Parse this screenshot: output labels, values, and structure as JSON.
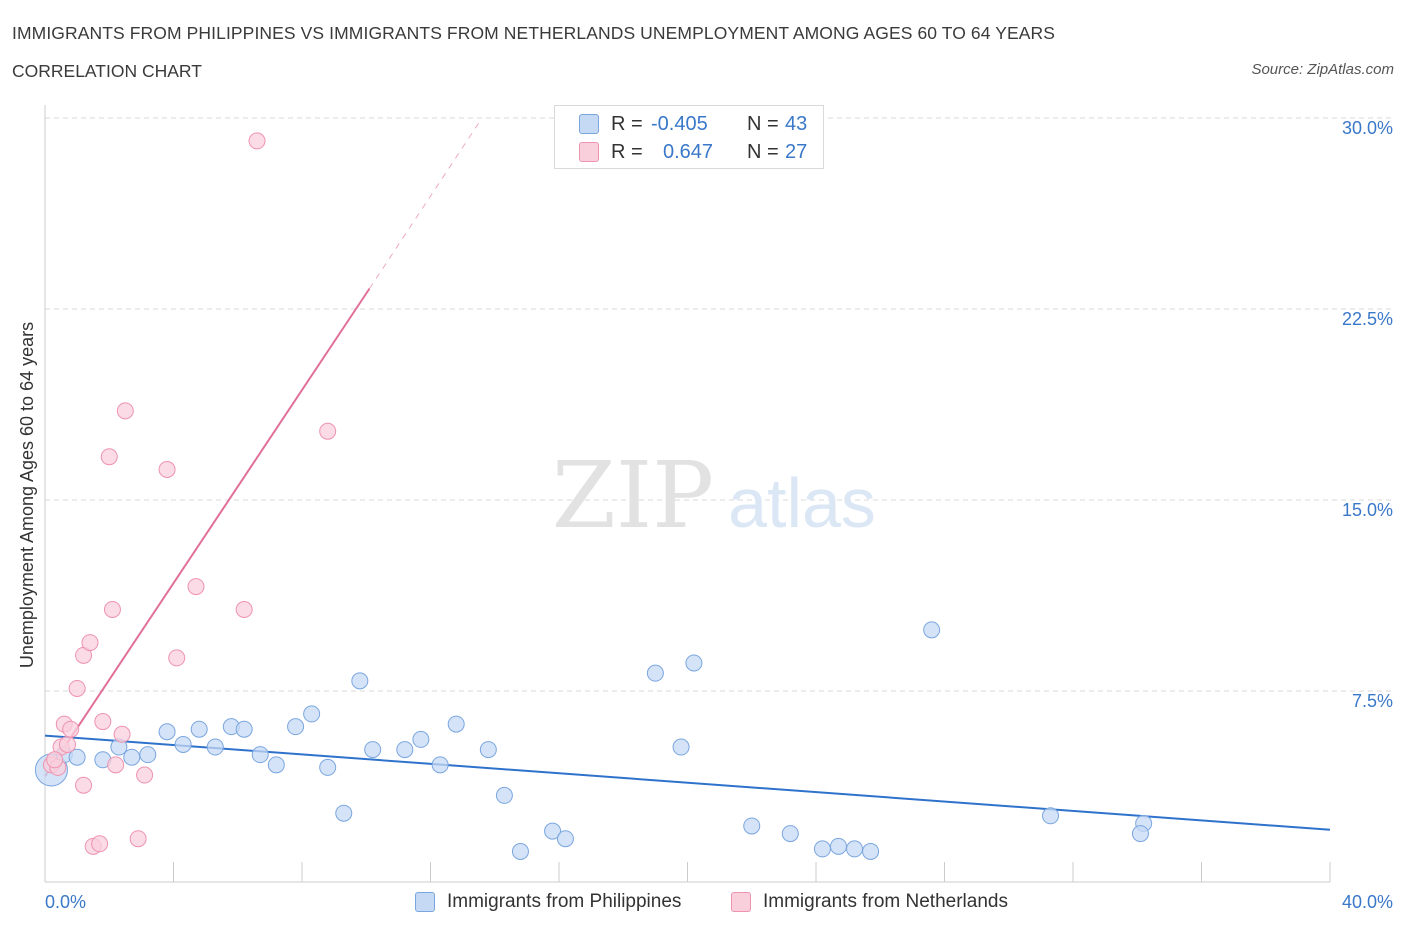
{
  "header": {
    "title": "IMMIGRANTS FROM PHILIPPINES VS IMMIGRANTS FROM NETHERLANDS UNEMPLOYMENT AMONG AGES 60 TO 64 YEARS",
    "subtitle": "CORRELATION CHART",
    "source": "Source: ZipAtlas.com"
  },
  "watermark": {
    "part1": "ZIP",
    "part2": "atlas"
  },
  "legend": {
    "rows": [
      {
        "r_label": "R =",
        "r_value": "-0.405",
        "n_label": "N =",
        "n_value": "43"
      },
      {
        "r_label": "R =",
        "r_value": "0.647",
        "n_label": "N =",
        "n_value": "27"
      }
    ]
  },
  "bottom_legend": {
    "philippines": "Immigrants from Philippines",
    "netherlands": "Immigrants from Netherlands"
  },
  "colors": {
    "blue_fill": "#c5d9f4",
    "blue_stroke": "#7aa6df",
    "blue_line": "#2f72cc",
    "pink_fill": "#f9cfdc",
    "pink_stroke": "#ee93b0",
    "pink_line": "#e0709a",
    "axis_label": "#3a78c9",
    "grid": "#d8d8d8"
  },
  "chart_data": {
    "type": "scatter",
    "title": "IMMIGRANTS FROM PHILIPPINES VS IMMIGRANTS FROM NETHERLANDS UNEMPLOYMENT AMONG AGES 60 TO 64 YEARS",
    "xlabel": "",
    "ylabel": "Unemployment Among Ages 60 to 64 years",
    "xlim": [
      0,
      40
    ],
    "ylim": [
      0,
      30
    ],
    "x_tick_labels": [
      "0.0%",
      "40.0%"
    ],
    "y_ticks": [
      7.5,
      15,
      22.5,
      30
    ],
    "y_tick_labels": [
      "7.5%",
      "15.0%",
      "22.5%",
      "30.0%"
    ],
    "grid": true,
    "legend_position": "top-center",
    "series": [
      {
        "name": "Immigrants from Philippines",
        "color": "blue",
        "points": [
          [
            0.2,
            4.4
          ],
          [
            0.6,
            5.0
          ],
          [
            1.0,
            4.9
          ],
          [
            1.8,
            4.8
          ],
          [
            2.3,
            5.3
          ],
          [
            2.7,
            4.9
          ],
          [
            3.2,
            5.0
          ],
          [
            3.8,
            5.9
          ],
          [
            4.3,
            5.4
          ],
          [
            4.8,
            6.0
          ],
          [
            5.3,
            5.3
          ],
          [
            5.8,
            6.1
          ],
          [
            6.2,
            6.0
          ],
          [
            6.7,
            5.0
          ],
          [
            7.2,
            4.6
          ],
          [
            7.8,
            6.1
          ],
          [
            8.3,
            6.6
          ],
          [
            8.8,
            4.5
          ],
          [
            9.3,
            2.7
          ],
          [
            9.8,
            7.9
          ],
          [
            10.2,
            5.2
          ],
          [
            11.2,
            5.2
          ],
          [
            11.7,
            5.6
          ],
          [
            12.3,
            4.6
          ],
          [
            12.8,
            6.2
          ],
          [
            13.8,
            5.2
          ],
          [
            14.3,
            3.4
          ],
          [
            14.8,
            1.2
          ],
          [
            15.8,
            2.0
          ],
          [
            16.2,
            1.7
          ],
          [
            19.0,
            8.2
          ],
          [
            19.8,
            5.3
          ],
          [
            20.2,
            8.6
          ],
          [
            22.0,
            2.2
          ],
          [
            23.2,
            1.9
          ],
          [
            24.2,
            1.3
          ],
          [
            24.7,
            1.4
          ],
          [
            25.2,
            1.3
          ],
          [
            25.7,
            1.2
          ],
          [
            27.6,
            9.9
          ],
          [
            31.3,
            2.6
          ],
          [
            34.2,
            2.3
          ],
          [
            34.1,
            1.9
          ]
        ],
        "trend": {
          "x": [
            0,
            40
          ],
          "y": [
            5.75,
            2.05
          ]
        }
      },
      {
        "name": "Immigrants from Netherlands",
        "color": "pink",
        "points": [
          [
            0.2,
            4.6
          ],
          [
            0.4,
            4.5
          ],
          [
            0.5,
            5.3
          ],
          [
            0.6,
            6.2
          ],
          [
            0.7,
            5.4
          ],
          [
            0.8,
            6.0
          ],
          [
            1.0,
            7.6
          ],
          [
            1.2,
            3.8
          ],
          [
            1.2,
            8.9
          ],
          [
            1.4,
            9.4
          ],
          [
            1.5,
            1.4
          ],
          [
            1.7,
            1.5
          ],
          [
            1.8,
            6.3
          ],
          [
            2.1,
            10.7
          ],
          [
            2.2,
            4.6
          ],
          [
            2.4,
            5.8
          ],
          [
            2.5,
            18.5
          ],
          [
            2.0,
            16.7
          ],
          [
            2.9,
            1.7
          ],
          [
            3.1,
            4.2
          ],
          [
            3.8,
            16.2
          ],
          [
            4.1,
            8.8
          ],
          [
            4.7,
            11.6
          ],
          [
            6.2,
            10.7
          ],
          [
            6.6,
            29.1
          ],
          [
            8.8,
            17.7
          ],
          [
            0.3,
            4.8
          ]
        ],
        "trend_solid": {
          "x": [
            0,
            10.1
          ],
          "y": [
            4.15,
            23.3
          ]
        },
        "trend_dashed": {
          "x": [
            10.1,
            13.5
          ],
          "y": [
            23.3,
            29.8
          ]
        }
      }
    ]
  }
}
